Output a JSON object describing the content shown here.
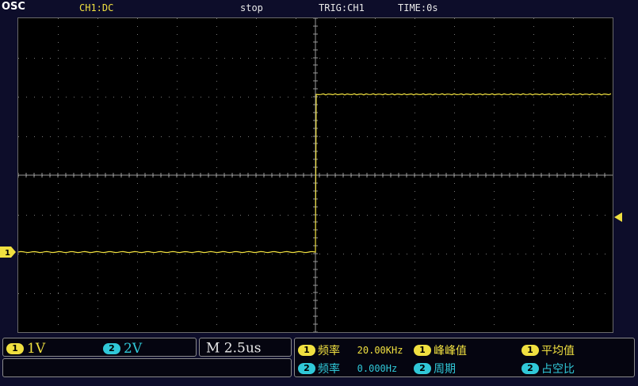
{
  "header": {
    "logo": "OSC",
    "channel_coupling": "CH1:DC",
    "run_state": "stop",
    "trigger": "TRIG:CH1",
    "time_offset": "TIME:0s"
  },
  "markers": {
    "channel1": "1"
  },
  "vertical": {
    "ch1_badge": "1",
    "ch1_scale": "1V",
    "ch2_badge": "2",
    "ch2_scale": "2V"
  },
  "timebase": "M 2.5us",
  "measurements": {
    "row1": [
      {
        "badge": "1",
        "label": "频率",
        "value": "20.00KHz"
      },
      {
        "badge": "1",
        "label": "峰峰值",
        "value": ""
      },
      {
        "badge": "1",
        "label": "平均值",
        "value": ""
      }
    ],
    "row2": [
      {
        "badge": "2",
        "label": "频率",
        "value": "0.000Hz"
      },
      {
        "badge": "2",
        "label": "周期",
        "value": ""
      },
      {
        "badge": "2",
        "label": "占空比",
        "value": ""
      }
    ]
  },
  "colors": {
    "ch1": "#f0e040",
    "ch2": "#30c8d8",
    "background": "#000000",
    "frame": "#0d0d2a"
  }
}
